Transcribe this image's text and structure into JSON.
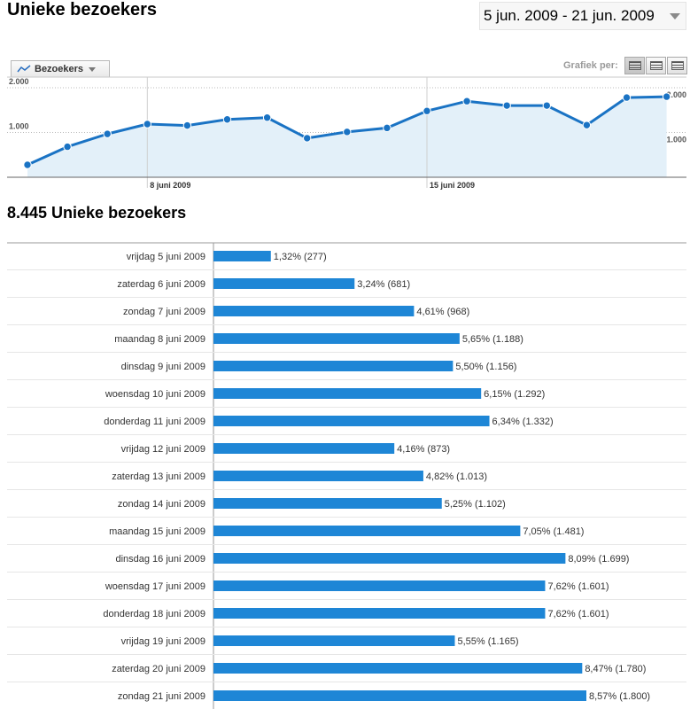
{
  "header": {
    "title": "Unieke bezoekers",
    "date_range": "5 jun. 2009 - 21 jun. 2009"
  },
  "toolbar": {
    "metric_label": "Bezoekers",
    "graph_by_label": "Grafiek per:"
  },
  "colors": {
    "line": "#1a73c4",
    "fill": "#e3f0f9",
    "bar": "#1e86d6"
  },
  "summary": {
    "title": "8.445 Unieke bezoekers"
  },
  "chart_data": [
    {
      "type": "line",
      "title": "Unieke bezoekers",
      "series": [
        {
          "name": "Bezoekers",
          "values": [
            277,
            681,
            968,
            1188,
            1156,
            1292,
            1332,
            873,
            1013,
            1102,
            1481,
            1699,
            1601,
            1601,
            1165,
            1780,
            1800
          ]
        }
      ],
      "ylim": [
        0,
        2000
      ],
      "yticks": [
        {
          "value": 2000,
          "label": "2.000"
        },
        {
          "value": 1000,
          "label": "1.000"
        }
      ],
      "xtick_labels": [
        {
          "index": 3,
          "label": "8 juni 2009"
        },
        {
          "index": 10,
          "label": "15 juni 2009"
        }
      ],
      "grid": true
    },
    {
      "type": "bar",
      "orientation": "horizontal",
      "categories": [
        "vrijdag 5 juni 2009",
        "zaterdag 6 juni 2009",
        "zondag 7 juni 2009",
        "maandag 8 juni 2009",
        "dinsdag 9 juni 2009",
        "woensdag 10 juni 2009",
        "donderdag 11 juni 2009",
        "vrijdag 12 juni 2009",
        "zaterdag 13 juni 2009",
        "zondag 14 juni 2009",
        "maandag 15 juni 2009",
        "dinsdag 16 juni 2009",
        "woensdag 17 juni 2009",
        "donderdag 18 juni 2009",
        "vrijdag 19 juni 2009",
        "zaterdag 20 juni 2009",
        "zondag 21 juni 2009"
      ],
      "values": [
        277,
        681,
        968,
        1188,
        1156,
        1292,
        1332,
        873,
        1013,
        1102,
        1481,
        1699,
        1601,
        1601,
        1165,
        1780,
        1800
      ],
      "value_labels": [
        "1,32% (277)",
        "3,24% (681)",
        "4,61% (968)",
        "5,65% (1.188)",
        "5,50% (1.156)",
        "6,15% (1.292)",
        "6,34% (1.332)",
        "4,16% (873)",
        "4,82% (1.013)",
        "5,25% (1.102)",
        "7,05% (1.481)",
        "8,09% (1.699)",
        "7,62% (1.601)",
        "7,62% (1.601)",
        "5,55% (1.165)",
        "8,47% (1.780)",
        "8,57% (1.800)"
      ]
    }
  ]
}
